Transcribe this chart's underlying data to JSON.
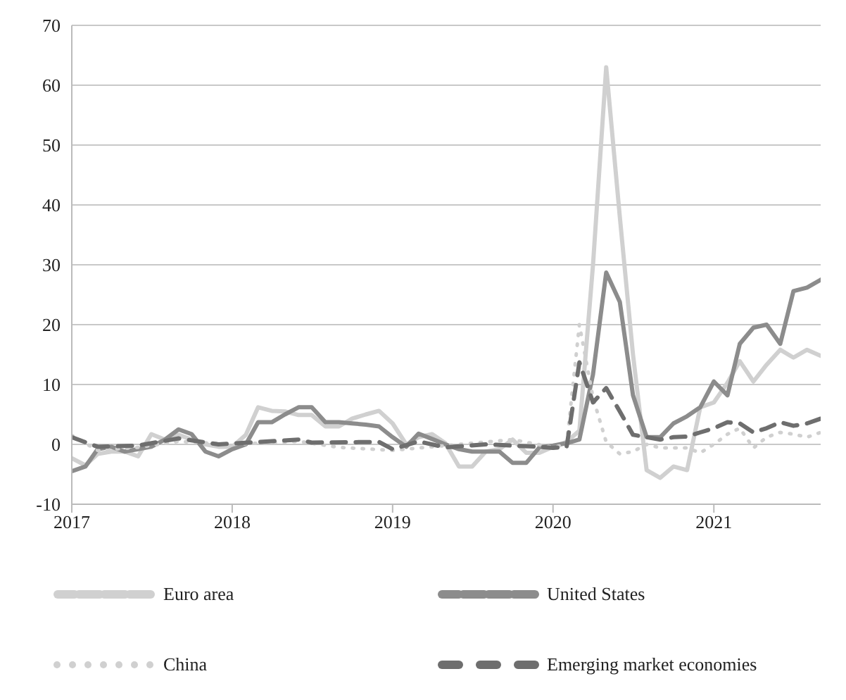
{
  "chart_data": {
    "type": "line",
    "xlim": [
      "2017-01",
      "2021-09"
    ],
    "xticks": [
      "2017",
      "2018",
      "2019",
      "2020",
      "2021"
    ],
    "ylim": [
      -10,
      70
    ],
    "yticks": [
      -10,
      0,
      10,
      20,
      30,
      40,
      50,
      60,
      70
    ],
    "grid": "y",
    "legend": "bottom",
    "marker": "none",
    "series": [
      {
        "name": "Euro area",
        "color": "#d0d0d0",
        "line_style": "solid",
        "x": [
          "2017-01",
          "2017-02",
          "2017-03",
          "2017-04",
          "2017-05",
          "2017-06",
          "2017-07",
          "2017-08",
          "2017-09",
          "2017-10",
          "2017-11",
          "2017-12",
          "2018-01",
          "2018-02",
          "2018-03",
          "2018-04",
          "2018-05",
          "2018-06",
          "2018-07",
          "2018-08",
          "2018-09",
          "2018-10",
          "2018-11",
          "2018-12",
          "2019-01",
          "2019-02",
          "2019-03",
          "2019-04",
          "2019-05",
          "2019-06",
          "2019-07",
          "2019-08",
          "2019-09",
          "2019-10",
          "2019-11",
          "2019-12",
          "2020-01",
          "2020-02",
          "2020-03",
          "2020-04",
          "2020-05",
          "2020-06",
          "2020-07",
          "2020-08",
          "2020-09",
          "2020-10",
          "2020-11",
          "2020-12",
          "2021-01",
          "2021-02",
          "2021-03",
          "2021-04",
          "2021-05",
          "2021-06",
          "2021-07",
          "2021-08",
          "2021-09"
        ],
        "values": [
          -2.3,
          -3.5,
          -1.6,
          -1.2,
          -1.2,
          -2,
          1.7,
          0.8,
          1.6,
          0.8,
          0,
          -0.4,
          -0.4,
          1.6,
          6.2,
          5.6,
          5.5,
          4.9,
          4.9,
          3,
          3,
          4.3,
          5,
          5.6,
          3.5,
          0,
          1.2,
          1.7,
          0.2,
          -3.7,
          -3.7,
          -1.2,
          -0.8,
          0.8,
          -1.4,
          -1.4,
          -0.4,
          0.4,
          2.3,
          30,
          63,
          38,
          15,
          -4.3,
          -5.6,
          -3.7,
          -4.3,
          6.2,
          7,
          10.3,
          13.9,
          10.5,
          13.3,
          15.8,
          14.5,
          15.8,
          14.8
        ]
      },
      {
        "name": "United States",
        "color": "#8c8c8c",
        "line_style": "solid",
        "x": [
          "2017-01",
          "2017-02",
          "2017-03",
          "2017-04",
          "2017-05",
          "2017-06",
          "2017-07",
          "2017-08",
          "2017-09",
          "2017-10",
          "2017-11",
          "2017-12",
          "2018-01",
          "2018-02",
          "2018-03",
          "2018-04",
          "2018-05",
          "2018-06",
          "2018-07",
          "2018-08",
          "2018-09",
          "2018-10",
          "2018-11",
          "2018-12",
          "2019-01",
          "2019-02",
          "2019-03",
          "2019-04",
          "2019-05",
          "2019-06",
          "2019-07",
          "2019-08",
          "2019-09",
          "2019-10",
          "2019-11",
          "2019-12",
          "2020-01",
          "2020-02",
          "2020-03",
          "2020-04",
          "2020-05",
          "2020-06",
          "2020-07",
          "2020-08",
          "2020-09",
          "2020-10",
          "2020-11",
          "2020-12",
          "2021-01",
          "2021-02",
          "2021-03",
          "2021-04",
          "2021-05",
          "2021-06",
          "2021-07",
          "2021-08",
          "2021-09"
        ],
        "values": [
          -4.5,
          -3.7,
          -0.8,
          -0.4,
          -1.2,
          -0.8,
          -0.4,
          0.8,
          2.5,
          1.7,
          -1.2,
          -2,
          -0.8,
          0,
          3.7,
          3.7,
          5,
          6.2,
          6.2,
          3.7,
          3.7,
          3.5,
          3.3,
          3,
          1.2,
          -0.4,
          1.8,
          0.9,
          0,
          -0.8,
          -1.2,
          -1.2,
          -1.2,
          -3.1,
          -3.1,
          -0.5,
          -0.2,
          0.2,
          0.8,
          11.7,
          28.7,
          23.8,
          8.2,
          1.2,
          1.2,
          3.5,
          4.7,
          6.2,
          10.5,
          8.2,
          16.8,
          19.5,
          20,
          16.8,
          25.6,
          26.2,
          27.5
        ]
      },
      {
        "name": "China",
        "color": "#d0d0d0",
        "line_style": "dotted",
        "x": [
          "2017-01",
          "2017-03",
          "2017-06",
          "2017-09",
          "2018-01",
          "2018-06",
          "2018-09",
          "2019-01",
          "2019-06",
          "2019-10",
          "2020-01",
          "2020-02",
          "2020-03",
          "2020-04",
          "2020-05",
          "2020-06",
          "2020-07",
          "2020-08",
          "2020-09",
          "2020-10",
          "2020-11",
          "2020-12",
          "2021-01",
          "2021-02",
          "2021-03",
          "2021-04",
          "2021-05",
          "2021-06",
          "2021-07",
          "2021-08",
          "2021-09"
        ],
        "values": [
          1.5,
          -1,
          -0.5,
          0.5,
          0,
          0.5,
          -0.5,
          -1,
          0,
          0.8,
          -0.5,
          0,
          20,
          7.8,
          0.4,
          -1.6,
          -1.2,
          0,
          -0.6,
          -0.6,
          -0.6,
          -1.4,
          0,
          1.7,
          2.7,
          -0.6,
          1.2,
          2,
          1.7,
          1.2,
          2
        ]
      },
      {
        "name": "Emerging market economies",
        "color": "#6e6e6e",
        "line_style": "dashed",
        "x": [
          "2017-01",
          "2017-03",
          "2017-06",
          "2017-09",
          "2017-12",
          "2018-06",
          "2018-07",
          "2018-12",
          "2019-01",
          "2019-03",
          "2019-05",
          "2019-08",
          "2019-12",
          "2020-01",
          "2020-02",
          "2020-03",
          "2020-04",
          "2020-05",
          "2020-06",
          "2020-07",
          "2020-08",
          "2020-09",
          "2020-10",
          "2020-11",
          "2020-12",
          "2021-01",
          "2021-02",
          "2021-03",
          "2021-04",
          "2021-05",
          "2021-06",
          "2021-07",
          "2021-08",
          "2021-09"
        ],
        "values": [
          1.2,
          -0.4,
          -0.2,
          1,
          0,
          0.8,
          0.3,
          0.4,
          -0.8,
          0.5,
          -0.5,
          0,
          -0.4,
          -0.6,
          -0.4,
          13.7,
          7,
          9.4,
          5.5,
          1.6,
          1.2,
          0.8,
          1.2,
          1.3,
          2,
          2.7,
          3.7,
          3.5,
          2,
          2.7,
          3.7,
          3.1,
          3.5,
          4.3
        ]
      }
    ]
  }
}
